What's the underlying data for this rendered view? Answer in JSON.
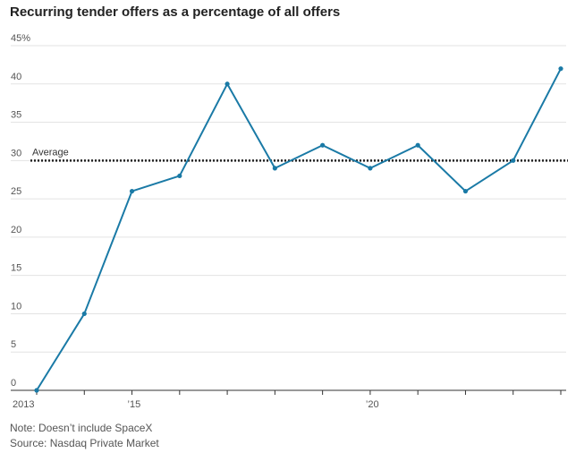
{
  "title": "Recurring tender offers as a percentage of all offers",
  "notes": {
    "note": "Note: Doesn’t include SpaceX",
    "source": "Source: Nasdaq Private Market"
  },
  "colors": {
    "line": "#1a7aa6",
    "grid": "#e3e3e3",
    "axis": "#333333",
    "average": "#222222"
  },
  "chart_data": {
    "type": "line",
    "title": "Recurring tender offers as a percentage of all offers",
    "xlabel": "",
    "ylabel": "",
    "x": [
      2013,
      2014,
      2015,
      2016,
      2017,
      2018,
      2019,
      2020,
      2021,
      2022,
      2023,
      2024
    ],
    "series": [
      {
        "values": [
          0,
          10,
          26,
          28,
          40,
          29,
          32,
          29,
          32,
          26,
          30,
          42
        ]
      }
    ],
    "reference_lines": [
      {
        "label": "Average",
        "value": 30,
        "style": "dotted"
      }
    ],
    "xlim": [
      2013,
      2024
    ],
    "ylim": [
      0,
      45
    ],
    "y_ticks": [
      0,
      5,
      10,
      15,
      20,
      25,
      30,
      35,
      40,
      45
    ],
    "y_tick_labels": [
      "0",
      "5",
      "10",
      "15",
      "20",
      "25",
      "30",
      "35",
      "40",
      "45%"
    ],
    "x_tick_labels": [
      {
        "x": 2013,
        "label": "2013"
      },
      {
        "x": 2015,
        "label": "’15"
      },
      {
        "x": 2020,
        "label": "’20"
      }
    ],
    "grid": true,
    "legend": "none"
  }
}
